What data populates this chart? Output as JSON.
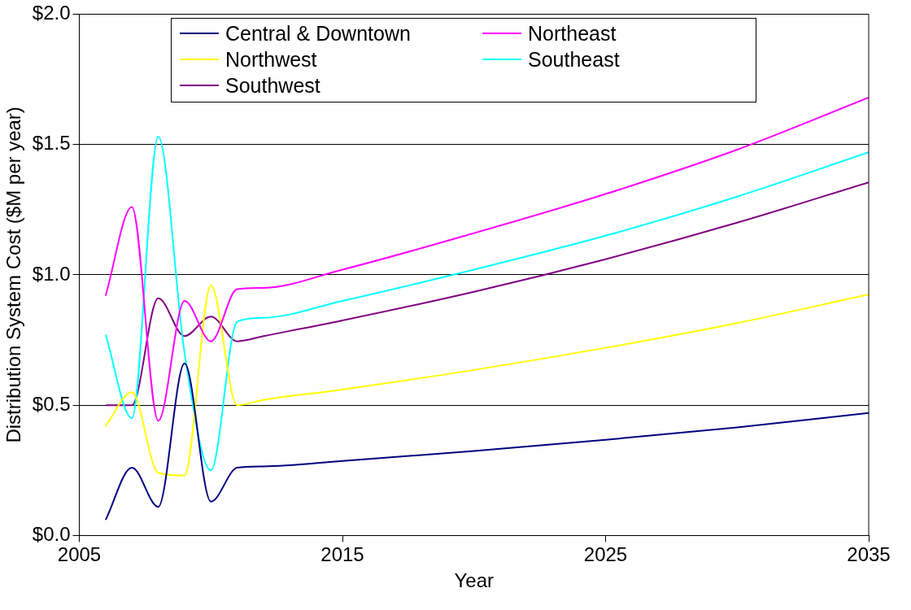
{
  "chart_data": {
    "type": "line",
    "xlabel": "Year",
    "ylabel": "Distribution System Cost ($M per year)",
    "x": [
      2006,
      2007,
      2008,
      2009,
      2010,
      2011,
      2012,
      2015,
      2020,
      2025,
      2030,
      2035
    ],
    "series": [
      {
        "name": "Central & Downtown",
        "color": "#000080",
        "values": [
          0.06,
          0.26,
          0.11,
          0.66,
          0.13,
          0.26,
          0.265,
          0.286,
          0.324,
          0.367,
          0.415,
          0.47
        ]
      },
      {
        "name": "Northeast",
        "color": "#ff00ff",
        "values": [
          0.92,
          1.26,
          0.44,
          0.9,
          0.745,
          0.945,
          0.95,
          1.02,
          1.16,
          1.31,
          1.48,
          1.68
        ]
      },
      {
        "name": "Northwest",
        "color": "#ffff00",
        "values": [
          0.42,
          0.55,
          0.24,
          0.23,
          0.96,
          0.5,
          0.52,
          0.56,
          0.635,
          0.72,
          0.815,
          0.925
        ]
      },
      {
        "name": "Southeast",
        "color": "#00ffff",
        "values": [
          0.77,
          0.45,
          1.53,
          0.7,
          0.25,
          0.82,
          0.835,
          0.9,
          1.02,
          1.15,
          1.3,
          1.47
        ]
      },
      {
        "name": "Southwest",
        "color": "#800080",
        "values": [
          0.5,
          0.5,
          0.91,
          0.765,
          0.84,
          0.745,
          0.765,
          0.825,
          0.935,
          1.06,
          1.2,
          1.355
        ]
      }
    ],
    "xlim": [
      2005,
      2035
    ],
    "xticks": [
      2005,
      2015,
      2025,
      2035
    ],
    "ylim": [
      0,
      2
    ],
    "yticks": [
      {
        "value": 0,
        "label": "$0.0"
      },
      {
        "value": 0.5,
        "label": "$0.5"
      },
      {
        "value": 1,
        "label": "$1.0"
      },
      {
        "value": 1.5,
        "label": "$1.5"
      },
      {
        "value": 2,
        "label": "$2.0"
      }
    ],
    "grid": "y",
    "legend": "top",
    "marker": "none",
    "line_style": "solid"
  }
}
